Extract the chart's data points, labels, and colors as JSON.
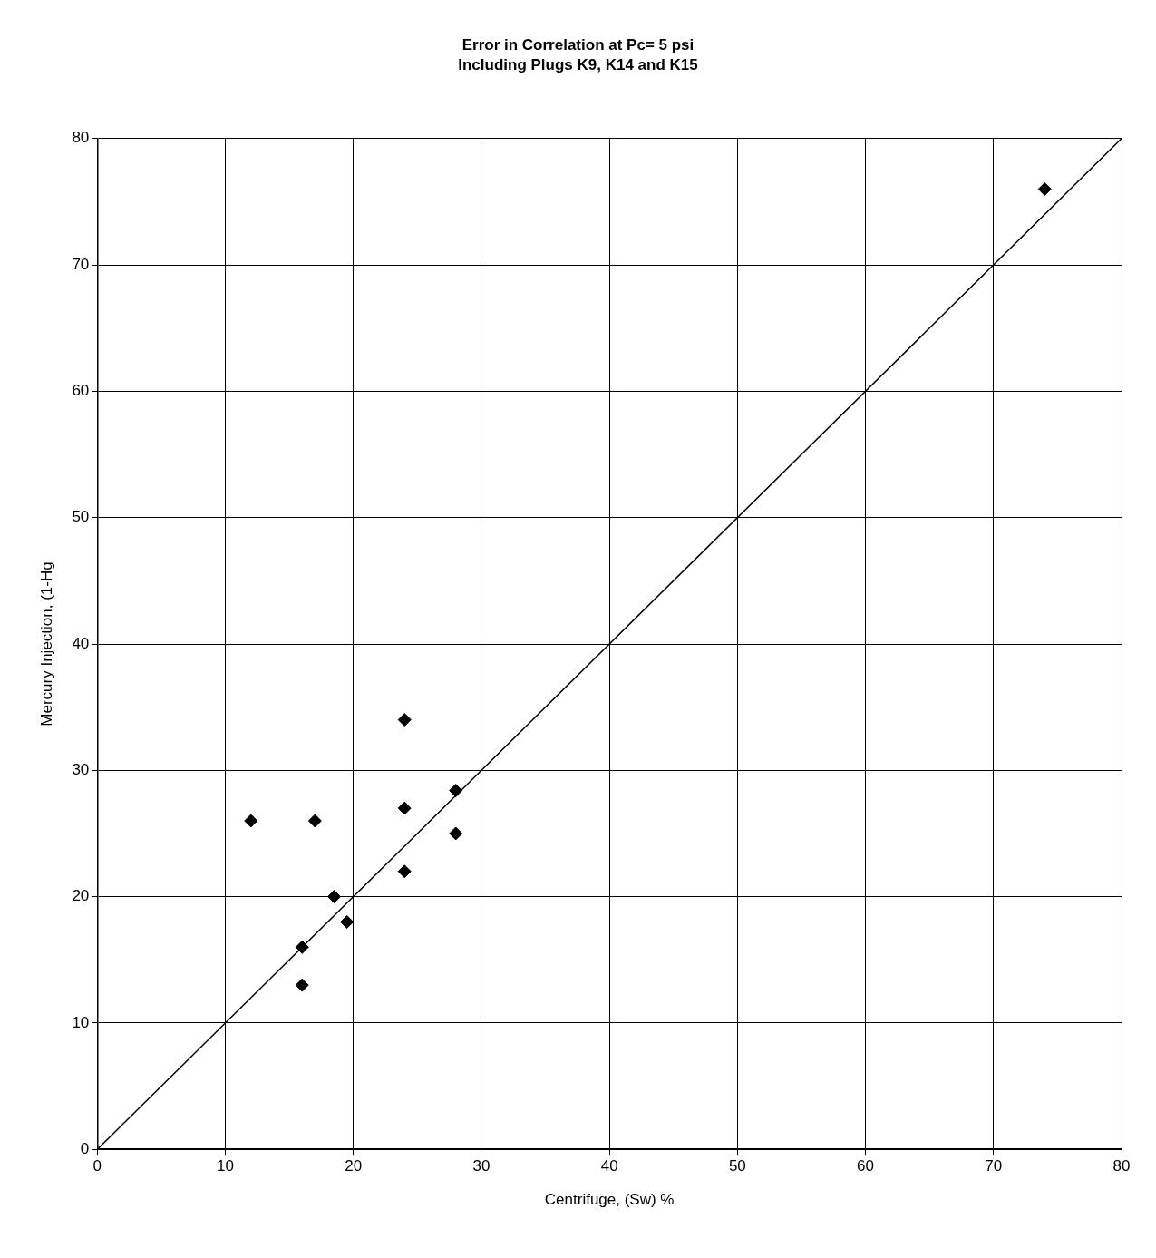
{
  "chart_data": {
    "type": "scatter",
    "title": "Error in Correlation at Pc= 5 psi",
    "subtitle": "Including Plugs K9, K14 and K15",
    "xlabel": "Centrifuge, (Sw) %",
    "ylabel": "Mercury Injection, (1-Hg",
    "series": [
      {
        "type": "scatter",
        "color": "#000000",
        "x": [
          74,
          24,
          24,
          28,
          28,
          24,
          12,
          17,
          18.5,
          19.5,
          16,
          16
        ],
        "values": [
          76,
          34,
          27,
          28.4,
          25,
          22,
          26,
          26,
          20,
          18,
          16,
          13
        ],
        "marker": "diamond"
      },
      {
        "type": "line",
        "color": "#000000",
        "x": [
          0,
          80
        ],
        "values": [
          0,
          80
        ],
        "marker": "none",
        "line_style": "solid"
      }
    ],
    "xlim": [
      0,
      80
    ],
    "ylim": [
      0,
      80
    ],
    "xticks": [
      0,
      10,
      20,
      30,
      40,
      50,
      60,
      70,
      80
    ],
    "yticks": [
      0,
      10,
      20,
      30,
      40,
      50,
      60,
      70,
      80
    ],
    "grid": true,
    "legend": false
  }
}
